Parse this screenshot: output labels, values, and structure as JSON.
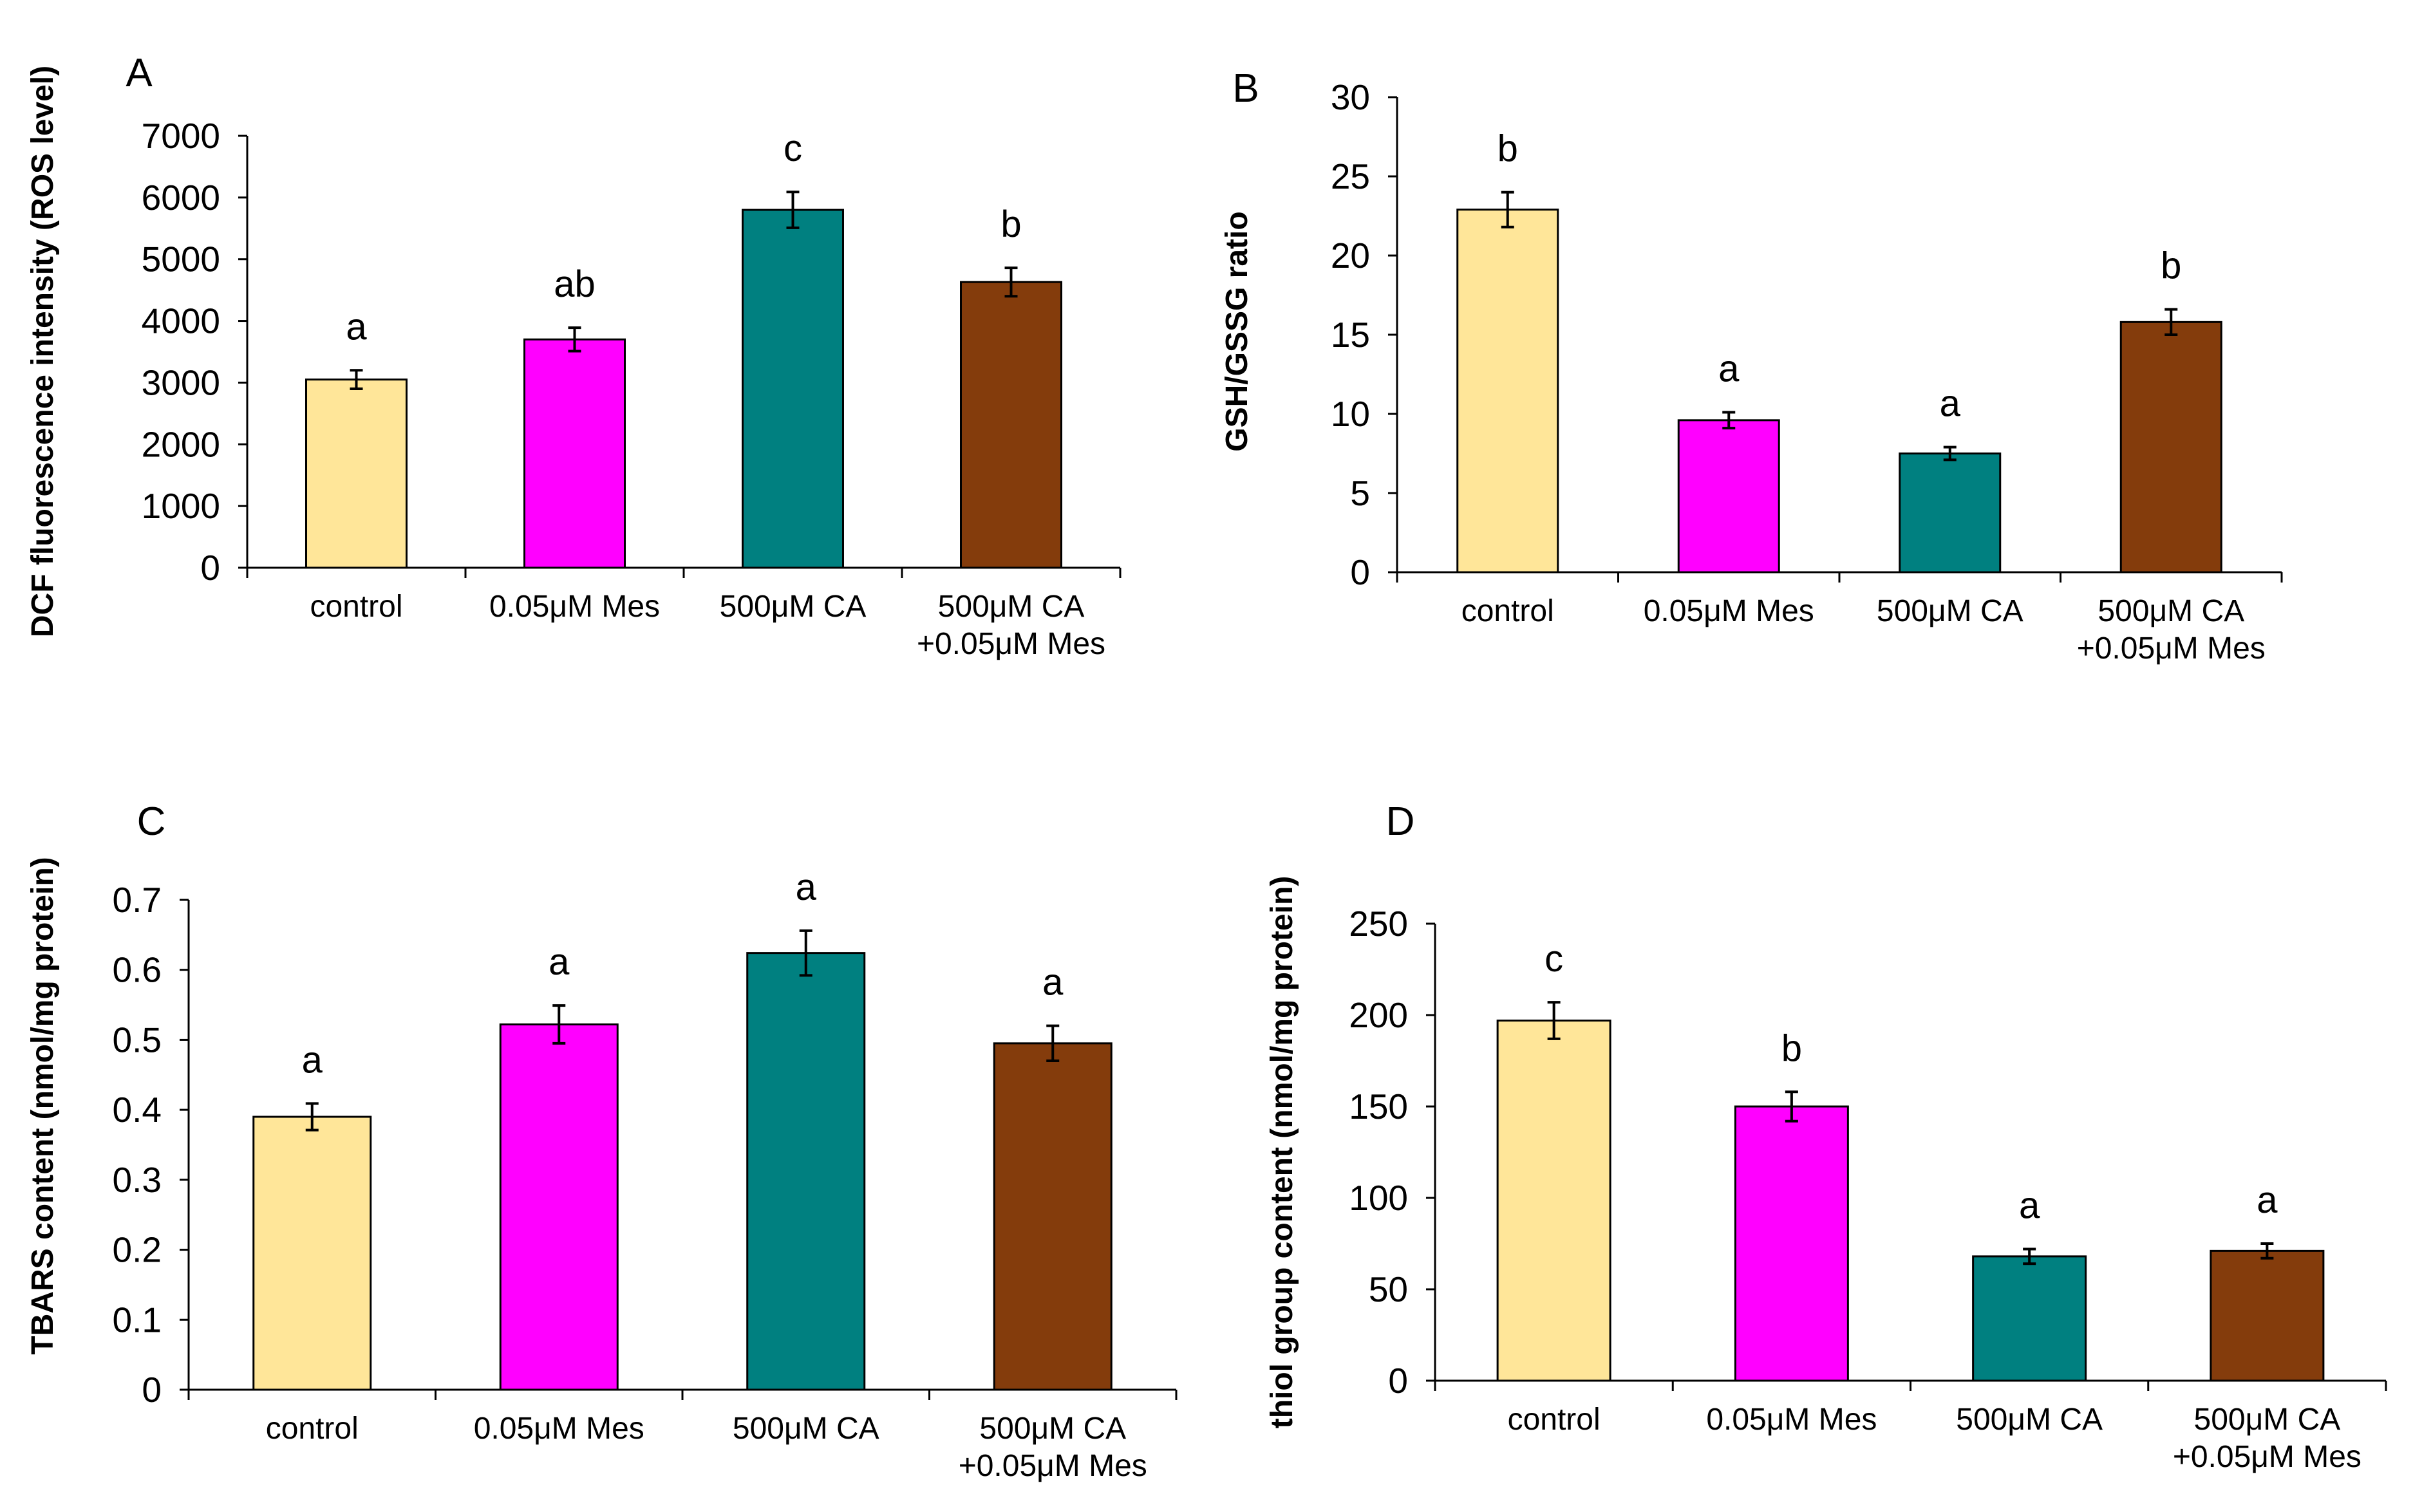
{
  "chart_data": [
    {
      "type": "bar",
      "panel": "A",
      "title": "",
      "ylabel": "DCF fluorescence intensity (ROS level)",
      "xlabel": "",
      "ylim": [
        0,
        7000
      ],
      "yticks": [
        "0",
        "1000",
        "2000",
        "3000",
        "4000",
        "5000",
        "6000",
        "7000"
      ],
      "grid": false,
      "categories": [
        [
          "control"
        ],
        [
          "0.05μM Mes"
        ],
        [
          "500μM CA"
        ],
        [
          "500μM CA",
          "+0.05μM Mes"
        ]
      ],
      "values": [
        3050,
        3700,
        5800,
        4630
      ],
      "errors": [
        150,
        190,
        290,
        230
      ],
      "significance": [
        "a",
        "ab",
        "c",
        "b"
      ],
      "colors": [
        "#FFE699",
        "#FF00FF",
        "#008080",
        "#843C0C"
      ]
    },
    {
      "type": "bar",
      "panel": "B",
      "title": "",
      "ylabel": "GSH/GSSG ratio",
      "xlabel": "",
      "ylim": [
        0,
        30
      ],
      "yticks": [
        "0",
        "5",
        "10",
        "15",
        "20",
        "25",
        "30"
      ],
      "grid": false,
      "categories": [
        [
          "control"
        ],
        [
          "0.05μM Mes"
        ],
        [
          "500μM CA"
        ],
        [
          "500μM CA",
          "+0.05μM Mes"
        ]
      ],
      "values": [
        22.9,
        9.6,
        7.5,
        15.8
      ],
      "errors": [
        1.1,
        0.5,
        0.4,
        0.8
      ],
      "significance": [
        "b",
        "a",
        "a",
        "b"
      ],
      "colors": [
        "#FFE699",
        "#FF00FF",
        "#008080",
        "#843C0C"
      ]
    },
    {
      "type": "bar",
      "panel": "C",
      "title": "",
      "ylabel": "TBARS content (nmol/mg protein)",
      "xlabel": "",
      "ylim": [
        0,
        0.7
      ],
      "yticks": [
        "0",
        "0.1",
        "0.2",
        "0.3",
        "0.4",
        "0.5",
        "0.6",
        "0.7"
      ],
      "grid": false,
      "categories": [
        [
          "control"
        ],
        [
          "0.05μM Mes"
        ],
        [
          "500μM CA"
        ],
        [
          "500μM CA",
          "+0.05μM Mes"
        ]
      ],
      "values": [
        0.39,
        0.522,
        0.624,
        0.495
      ],
      "errors": [
        0.019,
        0.027,
        0.032,
        0.025
      ],
      "significance": [
        "a",
        "a",
        "a",
        "a"
      ],
      "colors": [
        "#FFE699",
        "#FF00FF",
        "#008080",
        "#843C0C"
      ]
    },
    {
      "type": "bar",
      "panel": "D",
      "title": "",
      "ylabel": "thiol group content (nmol/mg protein)",
      "xlabel": "",
      "ylim": [
        0,
        250
      ],
      "yticks": [
        "0",
        "50",
        "100",
        "150",
        "200",
        "250"
      ],
      "grid": false,
      "categories": [
        [
          "control"
        ],
        [
          "0.05μM Mes"
        ],
        [
          "500μM CA"
        ],
        [
          "500μM CA",
          "+0.05μM Mes"
        ]
      ],
      "values": [
        197,
        150,
        68,
        71
      ],
      "errors": [
        10,
        8,
        4,
        4
      ],
      "significance": [
        "c",
        "b",
        "a",
        "a"
      ],
      "colors": [
        "#FFE699",
        "#FF00FF",
        "#008080",
        "#843C0C"
      ]
    }
  ]
}
